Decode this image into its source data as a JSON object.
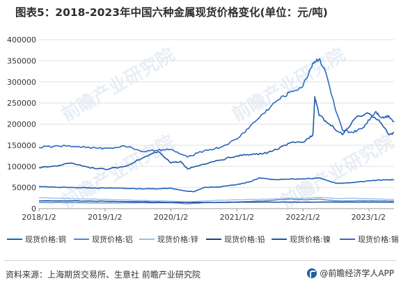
{
  "title": "图表5：2018-2023年中国六种金属现货价格变化(单位：元/吨)",
  "source": "资料来源：上海期货交易所、生意社 前瞻产业研究院",
  "brand": "@前瞻经济学人APP",
  "watermark": "前瞻产业研究院",
  "colors": {
    "copper": "#1f5fb5",
    "aluminium": "#4f86d0",
    "zinc": "#9bbfe8",
    "lead": "#12418c",
    "nickel": "#1c56a8",
    "tin": "#2a68c0"
  },
  "chart_data": {
    "type": "line",
    "title": "图表5：2018-2023年中国六种金属现货价格变化(单位：元/吨)",
    "xlabel": "",
    "ylabel": "",
    "ylim": [
      0,
      400000
    ],
    "yticks": [
      "0",
      "50000",
      "100000",
      "150000",
      "200000",
      "250000",
      "300000",
      "350000",
      "400000"
    ],
    "xticks": [
      "2018/1/2",
      "2019/1/2",
      "2020/1/2",
      "2021/1/2",
      "2022/1/2",
      "2023/1/2"
    ],
    "grid": "horizontal",
    "legend": "bottom",
    "series": [
      {
        "name": "现货价格:铜",
        "color_key": "copper",
        "points": [
          [
            2018.0,
            52000
          ],
          [
            2018.25,
            51000
          ],
          [
            2018.5,
            50000
          ],
          [
            2018.75,
            49500
          ],
          [
            2019.0,
            48500
          ],
          [
            2019.25,
            48500
          ],
          [
            2019.5,
            47000
          ],
          [
            2019.75,
            47000
          ],
          [
            2020.0,
            48500
          ],
          [
            2020.2,
            42000
          ],
          [
            2020.35,
            40000
          ],
          [
            2020.5,
            50000
          ],
          [
            2020.75,
            51500
          ],
          [
            2021.0,
            57000
          ],
          [
            2021.2,
            64000
          ],
          [
            2021.35,
            73000
          ],
          [
            2021.5,
            69000
          ],
          [
            2021.75,
            70000
          ],
          [
            2022.0,
            70500
          ],
          [
            2022.25,
            73000
          ],
          [
            2022.5,
            60000
          ],
          [
            2022.75,
            62000
          ],
          [
            2023.0,
            66000
          ],
          [
            2023.25,
            68000
          ],
          [
            2023.38,
            68500
          ]
        ]
      },
      {
        "name": "现货价格:铝",
        "color_key": "aluminium",
        "points": [
          [
            2018.0,
            14500
          ],
          [
            2018.5,
            14300
          ],
          [
            2019.0,
            13500
          ],
          [
            2019.5,
            14000
          ],
          [
            2020.0,
            14000
          ],
          [
            2020.25,
            11500
          ],
          [
            2020.5,
            14000
          ],
          [
            2021.0,
            16000
          ],
          [
            2021.5,
            19000
          ],
          [
            2021.8,
            23000
          ],
          [
            2022.0,
            21000
          ],
          [
            2022.25,
            22500
          ],
          [
            2022.5,
            18500
          ],
          [
            2022.75,
            18500
          ],
          [
            2023.0,
            18800
          ],
          [
            2023.38,
            18500
          ]
        ]
      },
      {
        "name": "现货价格:锌",
        "color_key": "zinc",
        "points": [
          [
            2018.0,
            26000
          ],
          [
            2018.5,
            23500
          ],
          [
            2019.0,
            22000
          ],
          [
            2019.5,
            19500
          ],
          [
            2020.0,
            18000
          ],
          [
            2020.25,
            15500
          ],
          [
            2020.5,
            18500
          ],
          [
            2021.0,
            21000
          ],
          [
            2021.5,
            22500
          ],
          [
            2021.8,
            24500
          ],
          [
            2022.0,
            24000
          ],
          [
            2022.25,
            27000
          ],
          [
            2022.5,
            24000
          ],
          [
            2022.75,
            24500
          ],
          [
            2023.0,
            23500
          ],
          [
            2023.38,
            22000
          ]
        ]
      },
      {
        "name": "现货价格:铅",
        "color_key": "lead",
        "points": [
          [
            2018.0,
            18500
          ],
          [
            2018.5,
            18500
          ],
          [
            2019.0,
            17500
          ],
          [
            2019.5,
            16500
          ],
          [
            2020.0,
            15000
          ],
          [
            2020.5,
            14500
          ],
          [
            2021.0,
            15000
          ],
          [
            2021.5,
            15500
          ],
          [
            2022.0,
            15300
          ],
          [
            2022.5,
            15500
          ],
          [
            2023.0,
            15300
          ],
          [
            2023.38,
            15300
          ]
        ]
      },
      {
        "name": "现货价格:镍",
        "color_key": "nickel",
        "points": [
          [
            2018.0,
            97000
          ],
          [
            2018.2,
            100000
          ],
          [
            2018.5,
            108000
          ],
          [
            2018.75,
            98000
          ],
          [
            2019.0,
            93000
          ],
          [
            2019.3,
            100000
          ],
          [
            2019.6,
            122000
          ],
          [
            2019.8,
            135000
          ],
          [
            2020.0,
            108000
          ],
          [
            2020.15,
            112000
          ],
          [
            2020.25,
            94000
          ],
          [
            2020.5,
            105000
          ],
          [
            2020.75,
            115000
          ],
          [
            2021.0,
            125000
          ],
          [
            2021.2,
            128000
          ],
          [
            2021.4,
            130000
          ],
          [
            2021.6,
            140000
          ],
          [
            2021.8,
            155000
          ],
          [
            2022.0,
            157000
          ],
          [
            2022.15,
            175000
          ],
          [
            2022.18,
            265000
          ],
          [
            2022.25,
            220000
          ],
          [
            2022.4,
            200000
          ],
          [
            2022.6,
            175000
          ],
          [
            2022.8,
            215000
          ],
          [
            2023.0,
            225000
          ],
          [
            2023.15,
            210000
          ],
          [
            2023.3,
            175000
          ],
          [
            2023.38,
            180000
          ]
        ]
      },
      {
        "name": "现货价格:锡",
        "color_key": "tin",
        "points": [
          [
            2018.0,
            145000
          ],
          [
            2018.3,
            148000
          ],
          [
            2018.6,
            147000
          ],
          [
            2018.9,
            143000
          ],
          [
            2019.0,
            143000
          ],
          [
            2019.3,
            148000
          ],
          [
            2019.6,
            135000
          ],
          [
            2019.8,
            138000
          ],
          [
            2020.0,
            140000
          ],
          [
            2020.25,
            122000
          ],
          [
            2020.5,
            137000
          ],
          [
            2020.75,
            145000
          ],
          [
            2021.0,
            165000
          ],
          [
            2021.2,
            195000
          ],
          [
            2021.4,
            225000
          ],
          [
            2021.6,
            255000
          ],
          [
            2021.8,
            275000
          ],
          [
            2022.0,
            290000
          ],
          [
            2022.15,
            345000
          ],
          [
            2022.25,
            355000
          ],
          [
            2022.35,
            320000
          ],
          [
            2022.5,
            230000
          ],
          [
            2022.6,
            185000
          ],
          [
            2022.75,
            180000
          ],
          [
            2022.9,
            190000
          ],
          [
            2023.0,
            210000
          ],
          [
            2023.1,
            230000
          ],
          [
            2023.2,
            215000
          ],
          [
            2023.3,
            220000
          ],
          [
            2023.38,
            205000
          ]
        ]
      }
    ]
  }
}
